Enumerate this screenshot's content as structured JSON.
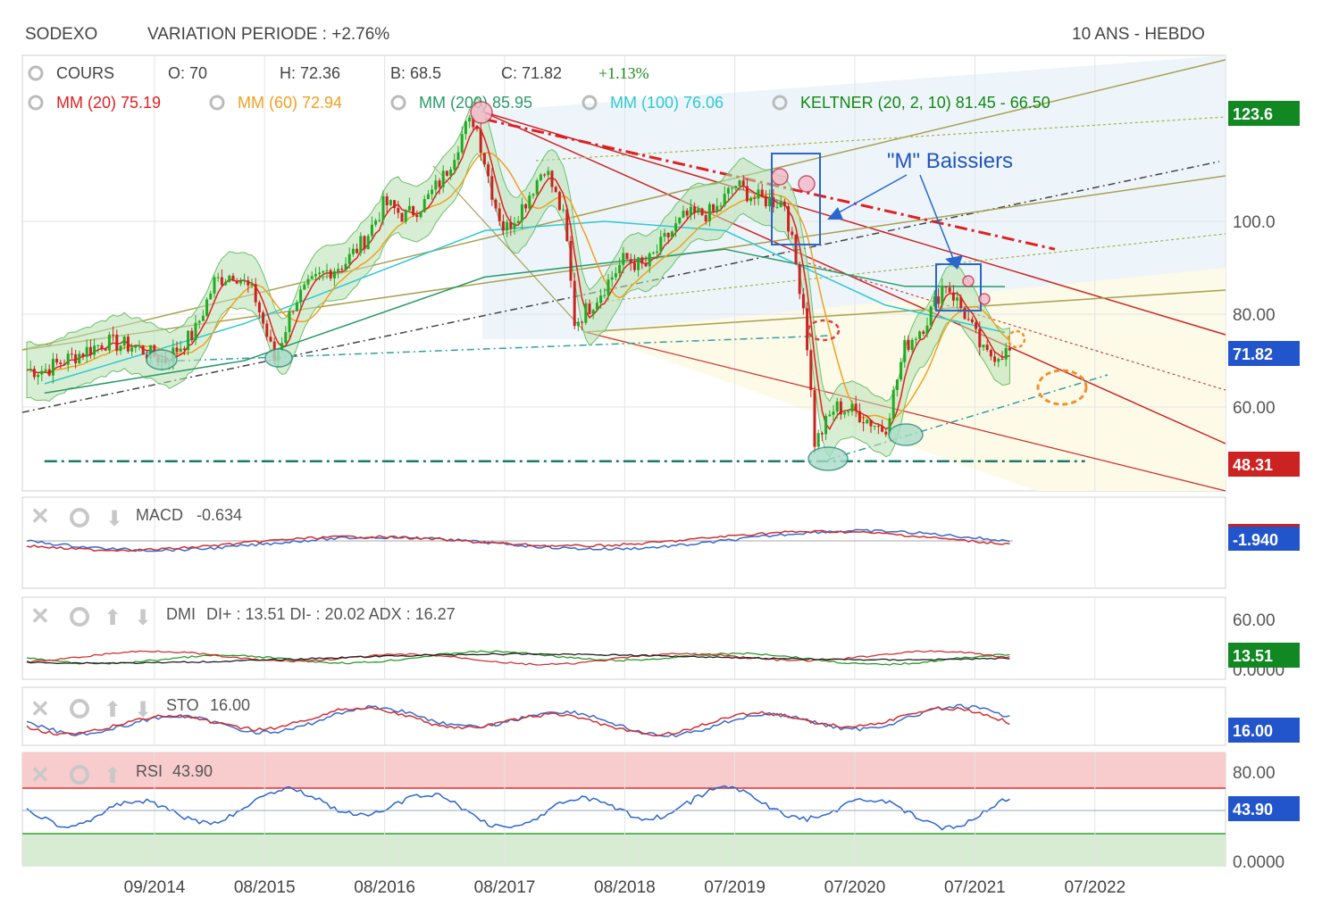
{
  "header": {
    "symbol": "SODEXO",
    "variation": "VARIATION PERIODE : +2.76%",
    "period": "10 ANS - HEBDO"
  },
  "legend": {
    "cours": "COURS",
    "open": "O: 70",
    "high": "H: 72.36",
    "low": "B: 68.5",
    "close": "C: 71.82",
    "change": "+1.13%",
    "mm20": "MM (20)  75.19",
    "mm60": "MM (60)  72.94",
    "mm200": "MM (200)  85.95",
    "mm100": "MM (100)  76.06",
    "keltner": "KELTNER (20, 2, 10)  81.45 - 66.50"
  },
  "colors": {
    "mm20": "#e02020",
    "mm60": "#f0a020",
    "mm200": "#2a9a6a",
    "mm100": "#30c8d0",
    "keltner": "#118811",
    "candle_up": "#22aa22",
    "candle_down": "#cc2222",
    "resistance": "#e02020",
    "support": "#1a7a6a"
  },
  "annotation": "\"M\" Baissiers",
  "indicators": {
    "macd": {
      "name": "MACD",
      "value": "-0.634",
      "tag": "-1.940"
    },
    "dmi": {
      "name": "DMI",
      "value": "DI+ : 13.51 DI- : 20.02 ADX : 16.27",
      "tag": "13.51",
      "axis_top": "60.00",
      "axis_bottom": "0.0000"
    },
    "sto": {
      "name": "STO",
      "value": "16.00",
      "tag": "16.00"
    },
    "rsi": {
      "name": "RSI",
      "value": "43.90",
      "tag": "43.90",
      "axis_top": "80.00",
      "axis_bottom": "0.0000"
    }
  },
  "chart_data": {
    "type": "line",
    "title": "SODEXO",
    "y_ticks": [
      "100.0",
      "80.00",
      "60.00"
    ],
    "y_ticks_values": [
      100,
      80,
      60
    ],
    "price_tags": {
      "high": "123.6",
      "last": "71.82",
      "low": "48.31"
    },
    "x_ticks": [
      "09/2014",
      "08/2015",
      "08/2016",
      "08/2017",
      "08/2018",
      "07/2019",
      "07/2020",
      "07/2021",
      "07/2022"
    ],
    "ylim": [
      44,
      127
    ],
    "series": [
      {
        "name": "COURS",
        "values": [
          [
            "2013-10",
            68
          ],
          [
            "2014-01",
            71
          ],
          [
            "2014-04",
            74
          ],
          [
            "2014-07",
            73
          ],
          [
            "2014-10",
            70
          ],
          [
            "2015-01",
            76
          ],
          [
            "2015-03",
            87
          ],
          [
            "2015-05",
            89
          ],
          [
            "2015-07",
            84
          ],
          [
            "2015-09",
            70
          ],
          [
            "2015-11",
            83
          ],
          [
            "2016-02",
            89
          ],
          [
            "2016-04",
            91
          ],
          [
            "2016-06",
            96
          ],
          [
            "2016-08",
            104
          ],
          [
            "2016-10",
            101
          ],
          [
            "2016-12",
            104
          ],
          [
            "2017-02",
            110
          ],
          [
            "2017-04",
            120
          ],
          [
            "2017-05",
            122
          ],
          [
            "2017-07",
            104
          ],
          [
            "2017-08",
            98
          ],
          [
            "2017-10",
            104
          ],
          [
            "2017-12",
            112
          ],
          [
            "2018-02",
            100
          ],
          [
            "2018-03",
            78
          ],
          [
            "2018-05",
            83
          ],
          [
            "2018-08",
            92
          ],
          [
            "2018-10",
            90
          ],
          [
            "2018-12",
            96
          ],
          [
            "2019-02",
            101
          ],
          [
            "2019-05",
            102
          ],
          [
            "2019-07",
            108
          ],
          [
            "2019-09",
            105
          ],
          [
            "2019-12",
            104
          ],
          [
            "2020-02",
            80
          ],
          [
            "2020-03",
            52
          ],
          [
            "2020-05",
            60
          ],
          [
            "2020-07",
            59
          ],
          [
            "2020-10",
            55
          ],
          [
            "2020-12",
            73
          ],
          [
            "2021-02",
            78
          ],
          [
            "2021-04",
            87
          ],
          [
            "2021-06",
            80
          ],
          [
            "2021-08",
            71
          ],
          [
            "2021-10",
            71.82
          ]
        ]
      },
      {
        "name": "MM (200)",
        "values": [
          [
            "2013-10",
            63
          ],
          [
            "2015-06",
            70
          ],
          [
            "2017-06",
            88
          ],
          [
            "2019-06",
            94
          ],
          [
            "2020-12",
            86
          ],
          [
            "2021-10",
            85.95
          ]
        ]
      },
      {
        "name": "MM (100)",
        "values": [
          [
            "2013-10",
            65
          ],
          [
            "2015-06",
            78
          ],
          [
            "2017-06",
            98
          ],
          [
            "2018-06",
            100
          ],
          [
            "2019-06",
            98
          ],
          [
            "2020-10",
            82
          ],
          [
            "2021-10",
            76.06
          ]
        ]
      }
    ],
    "trendlines": [
      {
        "name": "resistance",
        "from": [
          "2017-06",
          122
        ],
        "to": [
          "2022-03",
          94
        ]
      },
      {
        "name": "support",
        "from": [
          "2013-10",
          48.31
        ],
        "to": [
          "2022-06",
          48.31
        ]
      }
    ]
  }
}
